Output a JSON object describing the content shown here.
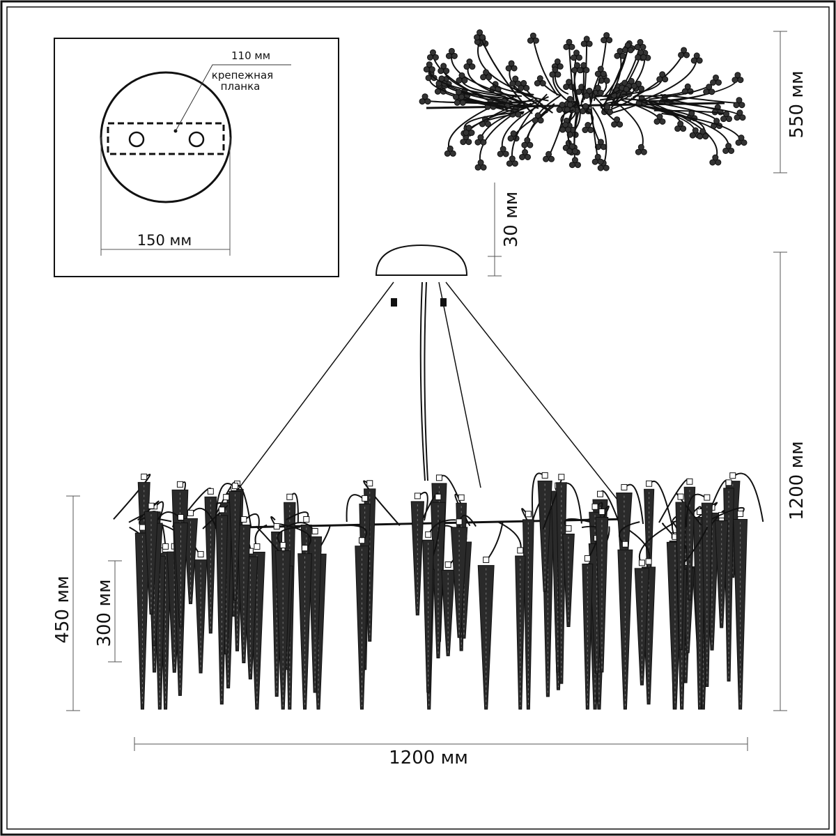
{
  "inset": {
    "strip_width_label": "110 мм",
    "strip_label_line1": "крепежная",
    "strip_label_line2": "планка",
    "canopy_diameter_label": "150 мм"
  },
  "dimensions": {
    "top_view_height": "550 мм",
    "canopy_height": "30 мм",
    "total_height": "1200 мм",
    "body_height": "450 мм",
    "short_pendant_height": "300 мм",
    "total_width": "1200 мм"
  },
  "colors": {
    "line": "#111111",
    "background": "#ffffff"
  }
}
